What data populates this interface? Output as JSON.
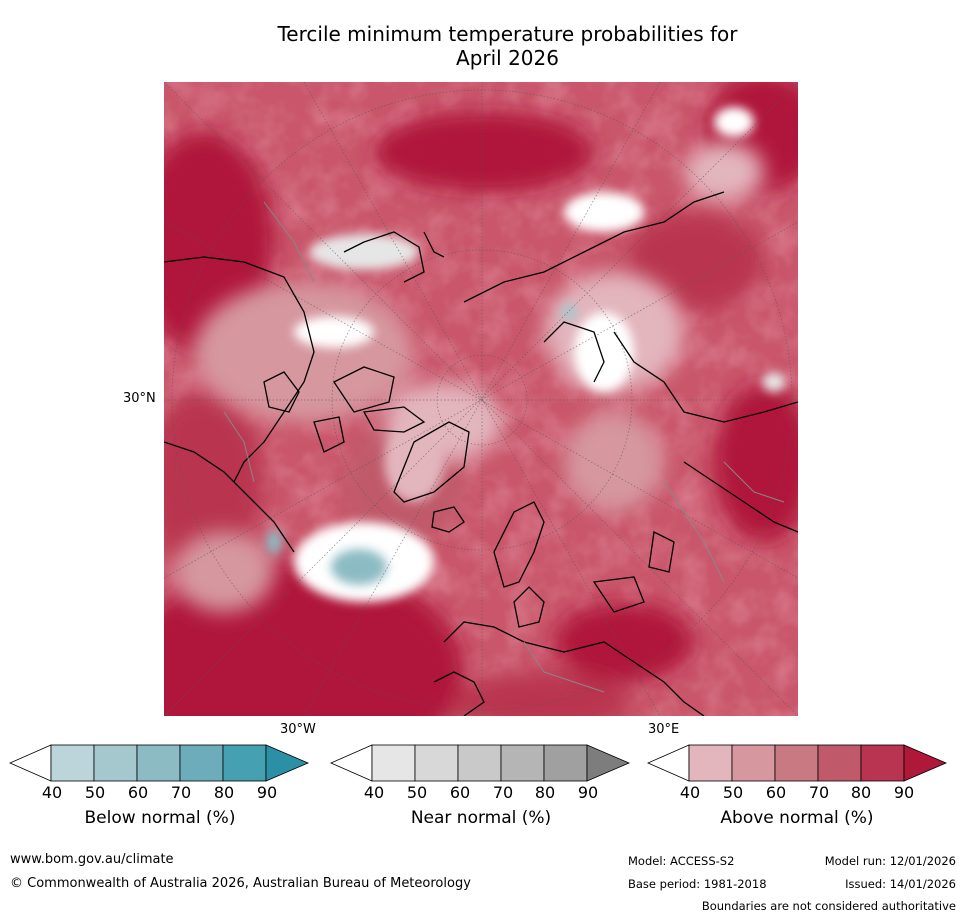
{
  "title": {
    "line1": "Tercile minimum temperature probabilities for",
    "line2": "April 2026"
  },
  "map": {
    "graticule_labels": {
      "lat_30n": "30°N",
      "lon_30w": "30°W",
      "lon_30e": "30°E"
    },
    "background_color": "#c9566a"
  },
  "colorbars": [
    {
      "id": "below",
      "label": "Below normal (%)",
      "ticks": [
        "40",
        "50",
        "60",
        "70",
        "80",
        "90"
      ],
      "colors": [
        "#ffffff",
        "#bcd5db",
        "#a5c8cf",
        "#8dbbc4",
        "#6dadbb",
        "#45a0b2",
        "#2b8fa6"
      ]
    },
    {
      "id": "near",
      "label": "Near normal (%)",
      "ticks": [
        "40",
        "50",
        "60",
        "70",
        "80",
        "90"
      ],
      "colors": [
        "#ffffff",
        "#e6e6e6",
        "#d8d8d8",
        "#c9c9c9",
        "#b5b5b5",
        "#a0a0a0",
        "#7d7d7d"
      ]
    },
    {
      "id": "above",
      "label": "Above normal (%)",
      "ticks": [
        "40",
        "50",
        "60",
        "70",
        "80",
        "90"
      ],
      "colors": [
        "#ffffff",
        "#e3b5bd",
        "#d6979f",
        "#c97982",
        "#c05a6a",
        "#b93450",
        "#b0183a"
      ]
    }
  ],
  "footer": {
    "url": "www.bom.gov.au/climate",
    "copyright": "© Commonwealth of Australia 2026, Australian Bureau of Meteorology",
    "model": "Model: ACCESS-S2",
    "base_period": "Base period: 1981-2018",
    "model_run": "Model run: 12/01/2026",
    "issued": "Issued: 14/01/2026",
    "disclaimer": "Boundaries are not considered authoritative"
  }
}
